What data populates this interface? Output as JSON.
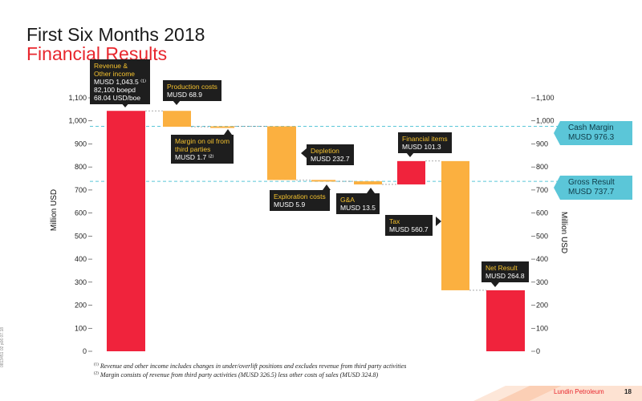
{
  "slide": {
    "title": "First Six Months 2018",
    "subtitle": "Financial Results",
    "side_code": "0813451 02 p06 07.18",
    "brand": "Lundin Petroleum",
    "page_number": "18"
  },
  "footnotes": [
    {
      "mark": "(1)",
      "text": "Revenue and other income includes changes in under/overlift positions and excludes revenue from third party activities"
    },
    {
      "mark": "(2)",
      "text": "Margin consists of revenue from third party activities (MUSD 326.5) less other costs of sales (MUSD 324.8)"
    }
  ],
  "chart_data": {
    "type": "bar",
    "subtype": "waterfall",
    "ylabel": "Million USD",
    "ylim": [
      0,
      1100
    ],
    "yticks": [
      "0",
      "100",
      "200",
      "300",
      "400",
      "500",
      "600",
      "700",
      "800",
      "900",
      "1,000",
      "1,100"
    ],
    "bars": [
      {
        "name": "Revenue & Other income",
        "start": 0,
        "end": 1043.5,
        "color": "#f0233c"
      },
      {
        "name": "Production costs",
        "start": 1043.5,
        "end": 974.6,
        "color": "#fbb040"
      },
      {
        "name": "Margin on oil from third parties",
        "start": 974.6,
        "end": 976.3,
        "color": "#fbb040"
      },
      {
        "name": "Depletion",
        "start": 976.3,
        "end": 743.6,
        "color": "#fbb040"
      },
      {
        "name": "Exploration costs",
        "start": 743.6,
        "end": 737.7,
        "color": "#fbb040"
      },
      {
        "name": "G&A",
        "start": 737.7,
        "end": 724.2,
        "color": "#fbb040"
      },
      {
        "name": "Financial items",
        "start": 724.2,
        "end": 825.5,
        "color": "#f0233c"
      },
      {
        "name": "Tax",
        "start": 825.5,
        "end": 264.8,
        "color": "#fbb040"
      },
      {
        "name": "Net Result",
        "start": 0,
        "end": 264.8,
        "color": "#f0233c"
      }
    ],
    "reference_lines": [
      {
        "name": "Cash Margin",
        "value": 976.3,
        "label": "Cash Margin",
        "value_label": "MUSD 976.3"
      },
      {
        "name": "Gross Result",
        "value": 737.7,
        "label": "Gross Result",
        "value_label": "MUSD 737.7"
      }
    ],
    "annotations": [
      {
        "title": "Revenue & Other income",
        "lines": [
          "MUSD 1,043.5 ⁽¹⁾",
          "82,100 boepd",
          "68.04 USD/boe"
        ]
      },
      {
        "title": "Production costs",
        "lines": [
          "MUSD 68.9"
        ]
      },
      {
        "title": "Margin on oil from third parties",
        "lines": [
          "MUSD 1.7 ⁽²⁾"
        ]
      },
      {
        "title": "Depletion",
        "lines": [
          "MUSD 232.7"
        ]
      },
      {
        "title": "Exploration costs",
        "lines": [
          "MUSD 5.9"
        ]
      },
      {
        "title": "G&A",
        "lines": [
          "MUSD 13.5"
        ]
      },
      {
        "title": "Financial items",
        "lines": [
          "MUSD 101.3"
        ]
      },
      {
        "title": "Tax",
        "lines": [
          "MUSD 560.7"
        ]
      },
      {
        "title": "Net Result",
        "lines": [
          "MUSD 264.8"
        ]
      }
    ],
    "grid": false,
    "colors": {
      "red": "#f0233c",
      "orange": "#fbb040",
      "reference": "#5bc6d8"
    }
  }
}
